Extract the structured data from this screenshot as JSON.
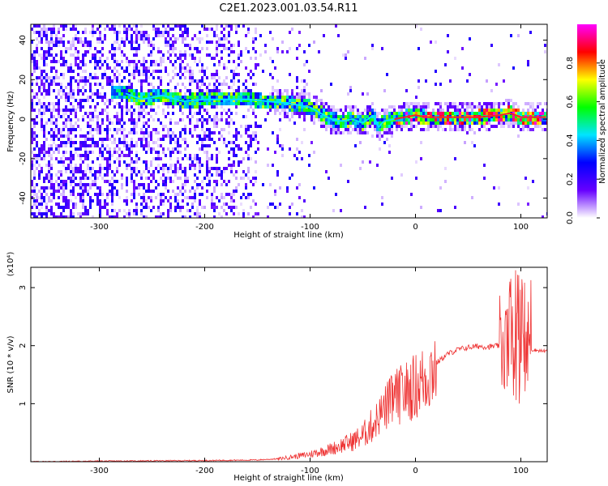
{
  "chart_data": [
    {
      "type": "heatmap",
      "title": "C2E1.2023.001.03.54.R11",
      "xlabel": "Height of straight line (km)",
      "ylabel": "Frequency (Hz)",
      "xlim": [
        -365,
        125
      ],
      "ylim": [
        -50,
        48
      ],
      "x_ticks": [
        -300,
        -200,
        -100,
        0,
        100
      ],
      "x_tick_labels": [
        "-300",
        "-200",
        "-100",
        "0",
        "100"
      ],
      "y_ticks": [
        40,
        20,
        0,
        -20,
        -40
      ],
      "y_tick_labels": [
        "40",
        "20",
        "0",
        "-20",
        "-40"
      ],
      "colorbar": {
        "label": "Normalized spectral amplitude",
        "range": [
          0.0,
          1.0
        ],
        "ticks": [
          0.0,
          0.2,
          0.4,
          0.6,
          0.8
        ],
        "tick_labels": [
          "0.0",
          "0.2",
          "0.4",
          "0.6",
          "0.8"
        ],
        "colormap": [
          "#ffffff",
          "#6600ff",
          "#0000ff",
          "#00e5ff",
          "#00ff00",
          "#ffff00",
          "#ff0000",
          "#ff00ff"
        ]
      },
      "ridge": {
        "x": [
          -280,
          -260,
          -240,
          -220,
          -200,
          -180,
          -160,
          -140,
          -120,
          -100,
          -90,
          -80,
          -70,
          -60,
          -50,
          -40,
          -35,
          -30,
          -20,
          -10,
          0,
          10,
          20,
          40,
          60,
          80,
          90,
          100,
          110,
          120
        ],
        "y": [
          14,
          10,
          12,
          9,
          10,
          10,
          10,
          9,
          8,
          6,
          3,
          0,
          -1,
          0,
          -2,
          2,
          -4,
          -1,
          0,
          1,
          2,
          1,
          1,
          1,
          1,
          2,
          3,
          1,
          1,
          1
        ]
      },
      "grid": false
    },
    {
      "type": "line",
      "xlabel": "Height of straight line (km)",
      "ylabel": "SNR (10 * v/v)",
      "y_multiplier": "(x10⁴)",
      "xlim": [
        -365,
        125
      ],
      "ylim": [
        0,
        3.35
      ],
      "x_ticks": [
        -300,
        -200,
        -100,
        0,
        100
      ],
      "x_tick_labels": [
        "-300",
        "-200",
        "-100",
        "0",
        "100"
      ],
      "y_ticks": [
        1,
        2,
        3
      ],
      "y_tick_labels": [
        "1",
        "2",
        "3"
      ],
      "series": [
        {
          "color": "#ee3333",
          "x": [
            -365,
            -300,
            -200,
            -150,
            -130,
            -110,
            -100,
            -80,
            -60,
            -50,
            -40,
            -30,
            -20,
            -10,
            0,
            10,
            20,
            30,
            40,
            50,
            60,
            70,
            80,
            85,
            90,
            95,
            100,
            105,
            110,
            125
          ],
          "y": [
            0.0,
            0.01,
            0.02,
            0.03,
            0.05,
            0.1,
            0.13,
            0.22,
            0.35,
            0.45,
            0.65,
            0.9,
            1.1,
            1.2,
            1.3,
            1.45,
            1.7,
            1.85,
            1.93,
            1.97,
            1.99,
            1.98,
            2.0,
            2.02,
            2.05,
            1.8,
            1.9,
            1.95,
            1.93,
            1.9
          ]
        }
      ],
      "grid": false
    }
  ]
}
